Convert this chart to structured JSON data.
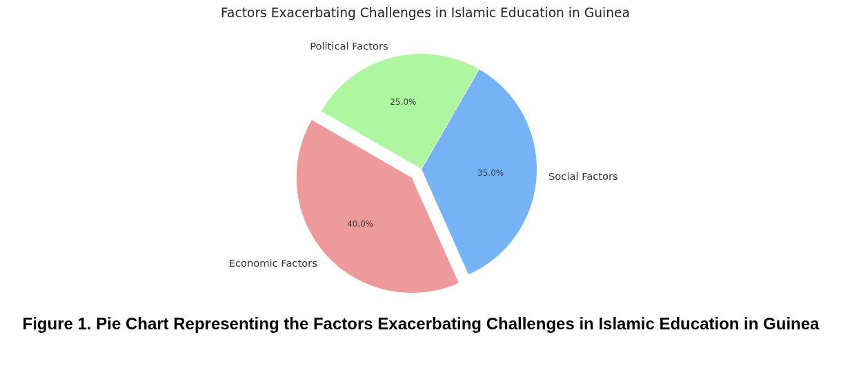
{
  "chart_data": {
    "type": "pie",
    "title": "Factors Exacerbating Challenges in Islamic Education in Guinea",
    "categories": [
      "Economic Factors",
      "Social Factors",
      "Political Factors"
    ],
    "values": [
      40,
      35,
      25
    ],
    "colors": [
      "#ef9a9a",
      "#76b2f6",
      "#aef7a0"
    ],
    "value_labels": [
      "40.0%",
      "35.0%",
      "25.0%"
    ],
    "annotations": [
      "Figure 1. Pie Chart Representing the Factors Exacerbating Challenges in Islamic Education in Guinea"
    ]
  }
}
